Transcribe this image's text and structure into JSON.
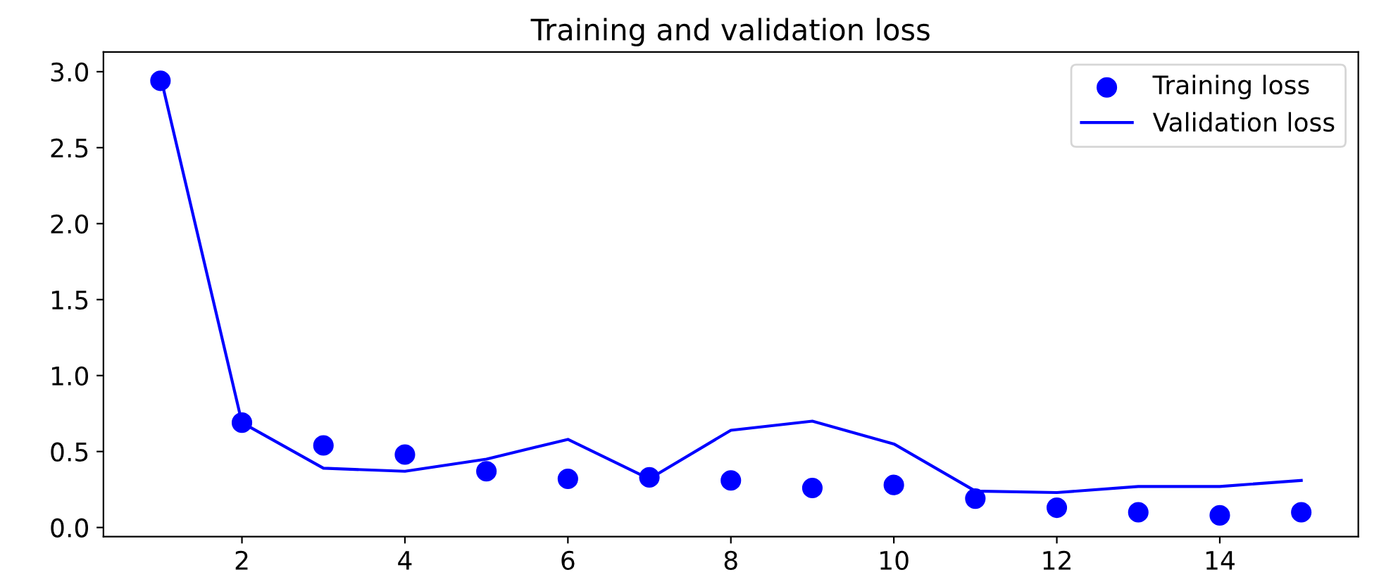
{
  "chart_data": {
    "type": "scatter",
    "title": "Training and validation loss",
    "x": [
      1,
      2,
      3,
      4,
      5,
      6,
      7,
      8,
      9,
      10,
      11,
      12,
      13,
      14,
      15
    ],
    "series": [
      {
        "name": "Training loss",
        "color": "#0000ff",
        "marker": "circle",
        "values": [
          2.94,
          0.69,
          0.54,
          0.48,
          0.37,
          0.32,
          0.33,
          0.31,
          0.26,
          0.28,
          0.19,
          0.13,
          0.1,
          0.08,
          0.1
        ]
      },
      {
        "name": "Validation loss",
        "type": "line",
        "color": "#0000ff",
        "marker": "none",
        "values": [
          2.97,
          0.69,
          0.39,
          0.37,
          0.45,
          0.58,
          0.32,
          0.64,
          0.7,
          0.55,
          0.24,
          0.23,
          0.27,
          0.27,
          0.31
        ]
      }
    ],
    "xlim": [
      0.3,
      15.7
    ],
    "ylim": [
      -0.06,
      3.13
    ],
    "xticks": [
      2,
      4,
      6,
      8,
      10,
      12,
      14
    ],
    "yticks": [
      {
        "value": 0,
        "label": "0.0"
      },
      {
        "value": 0.5,
        "label": "0.5"
      },
      {
        "value": 1,
        "label": "1.0"
      },
      {
        "value": 1.5,
        "label": "1.5"
      },
      {
        "value": 2,
        "label": "2.0"
      },
      {
        "value": 2.5,
        "label": "2.5"
      },
      {
        "value": 3,
        "label": "3.0"
      }
    ],
    "grid": false,
    "legend": "top right"
  }
}
